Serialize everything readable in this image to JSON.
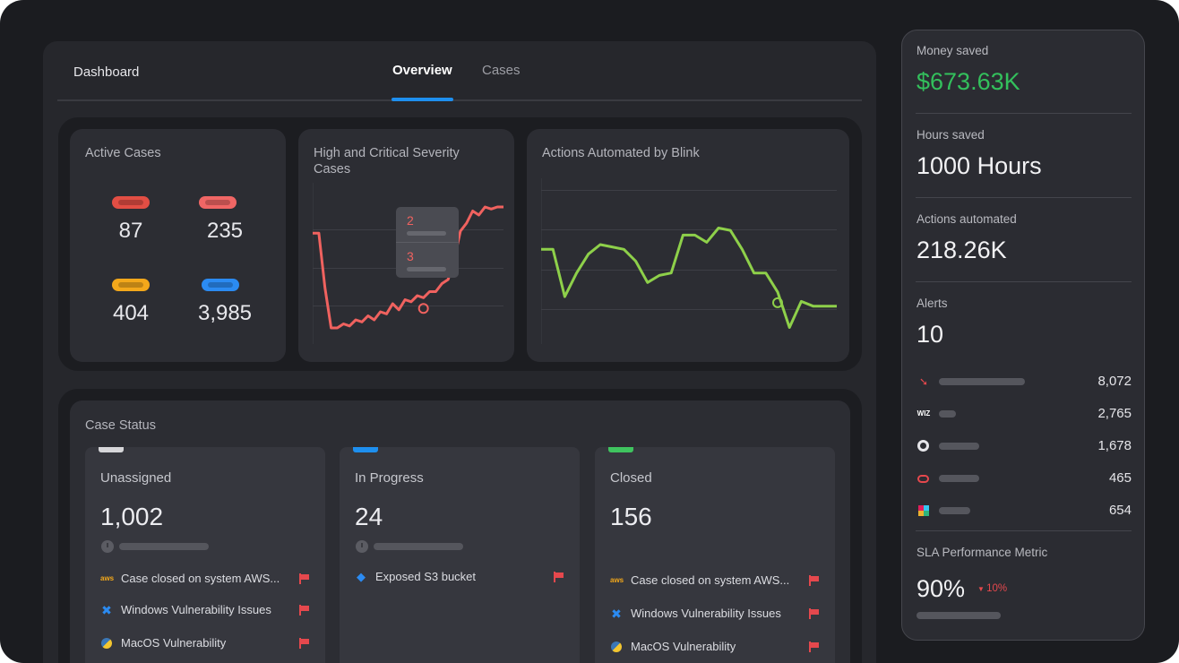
{
  "header": {
    "breadcrumb": "Dashboard",
    "tabs": [
      {
        "label": "Overview",
        "active": true
      },
      {
        "label": "Cases",
        "active": false
      }
    ]
  },
  "active_cases": {
    "title": "Active Cases",
    "items": [
      {
        "value": "87",
        "color": "#e24e44"
      },
      {
        "value": "235",
        "color": "#f06665"
      },
      {
        "value": "404",
        "color": "#f3a81b"
      },
      {
        "value": "3,985",
        "color": "#2b8bf2"
      }
    ]
  },
  "severity_chart": {
    "title": "High and Critical Severity Cases",
    "tooltip": {
      "values": [
        "2",
        "3"
      ]
    }
  },
  "automation_chart": {
    "title": "Actions Automated by Blink"
  },
  "chart_data": [
    {
      "type": "line",
      "title": "High and Critical Severity Cases",
      "color": "#f0625f",
      "y": [
        55,
        55,
        28,
        8,
        8,
        10,
        9,
        12,
        11,
        14,
        12,
        16,
        15,
        20,
        17,
        22,
        21,
        24,
        23,
        26,
        26,
        30,
        32,
        42,
        56,
        60,
        66,
        64,
        68,
        67,
        68,
        68
      ],
      "ylim": [
        0,
        80
      ],
      "highlight_index": 18,
      "tooltip_values": [
        "2",
        "3"
      ]
    },
    {
      "type": "line",
      "title": "Actions Automated by Blink",
      "color": "#8ed04a",
      "y": [
        40,
        40,
        20,
        30,
        38,
        42,
        41,
        40,
        35,
        26,
        29,
        30,
        46,
        46,
        43,
        49,
        48,
        40,
        30,
        30,
        22,
        7,
        18,
        16,
        16,
        16
      ],
      "ylim": [
        0,
        70
      ],
      "highlight_index": 20
    }
  ],
  "case_status": {
    "title": "Case Status",
    "columns": [
      {
        "label": "Unassigned",
        "count": "1,002",
        "accent": "#d6d6d9",
        "items": [
          {
            "icon": "aws",
            "text": "Case closed on system AWS..."
          },
          {
            "icon": "windows",
            "text": "Windows Vulnerability Issues"
          },
          {
            "icon": "python",
            "text": "MacOS Vulnerability"
          }
        ]
      },
      {
        "label": "In Progress",
        "count": "24",
        "accent": "#1e8fef",
        "items": [
          {
            "icon": "s3",
            "text": "Exposed S3 bucket"
          }
        ]
      },
      {
        "label": "Closed",
        "count": "156",
        "accent": "#3fc45f",
        "items": [
          {
            "icon": "aws",
            "text": "Case closed on system AWS..."
          },
          {
            "icon": "windows",
            "text": "Windows Vulnerability Issues"
          },
          {
            "icon": "python",
            "text": "MacOS Vulnerability"
          }
        ]
      }
    ]
  },
  "sidebar": {
    "money_saved": {
      "label": "Money saved",
      "value": "$673.63K",
      "color": "#33c05c"
    },
    "hours_saved": {
      "label": "Hours saved",
      "value": "1000 Hours"
    },
    "actions_automated": {
      "label": "Actions automated",
      "value": "218.26K"
    },
    "alerts": {
      "label": "Alerts",
      "value": "10",
      "rows": [
        {
          "icon": "crowdstrike-icon",
          "value": "8,072",
          "bar": 0.6
        },
        {
          "icon": "wiz-icon",
          "value": "2,765",
          "bar": 0.12
        },
        {
          "icon": "github-icon",
          "value": "1,678",
          "bar": 0.28
        },
        {
          "icon": "oracle-icon",
          "value": "465",
          "bar": 0.28
        },
        {
          "icon": "slack-icon",
          "value": "654",
          "bar": 0.22
        }
      ]
    },
    "sla": {
      "label": "SLA Performance Metric",
      "value": "90%",
      "change": "10%"
    }
  }
}
